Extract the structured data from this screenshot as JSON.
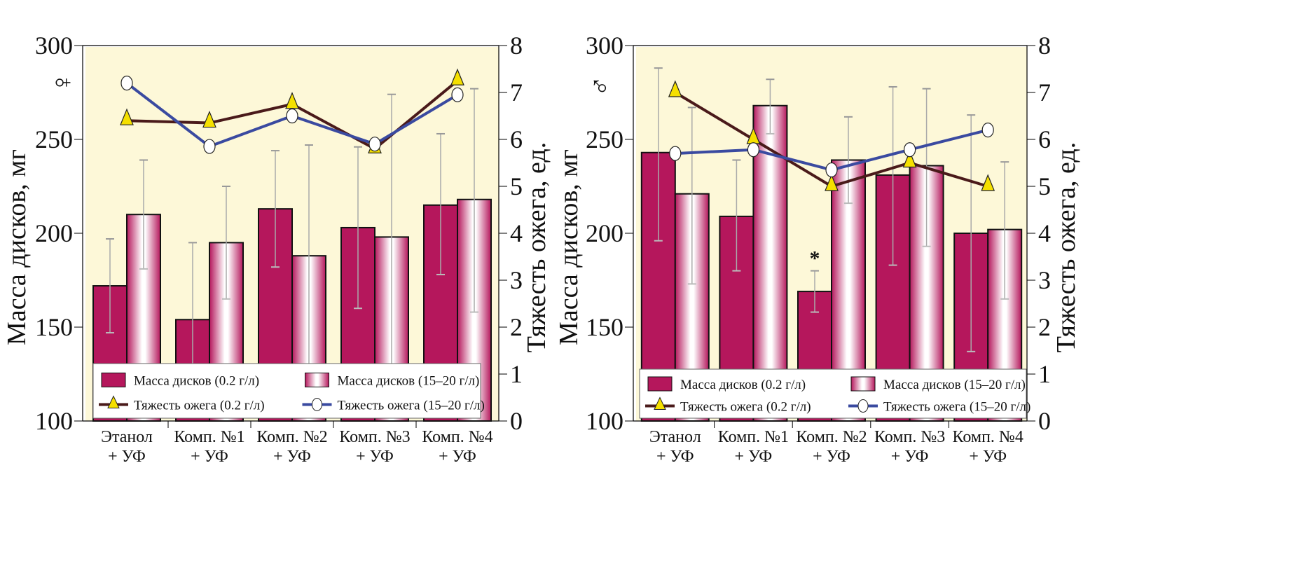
{
  "colors": {
    "bar_low": "#b5175c",
    "bar_high_edge": "#b5175c",
    "line_low": "#4a1a1a",
    "line_high": "#3a4aa0",
    "marker_triangle": "#f5e000",
    "plot_bg": "#fdf8d8"
  },
  "chart_data": [
    {
      "type": "bar+line",
      "symbol": "♀",
      "categories": [
        [
          "Этанол",
          "+ УФ"
        ],
        [
          "Комп. №1",
          "+ УФ"
        ],
        [
          "Комп. №2",
          "+ УФ"
        ],
        [
          "Комп. №3",
          "+ УФ"
        ],
        [
          "Комп. №4",
          "+ УФ"
        ]
      ],
      "ylabel": "Масса дисков, мг",
      "ylim": [
        100,
        300
      ],
      "yticks": [
        100,
        150,
        200,
        250,
        300
      ],
      "y2label": "Тяжесть ожега, ед.",
      "y2lim": [
        0,
        8
      ],
      "y2ticks": [
        0,
        1,
        2,
        3,
        4,
        5,
        6,
        7,
        8
      ],
      "bars": [
        {
          "name": "Масса дисков (0.2 г/л)",
          "values": [
            172,
            154,
            213,
            203,
            215
          ],
          "err_low": [
            147,
            113,
            182,
            160,
            178
          ],
          "err_high": [
            197,
            195,
            244,
            246,
            253
          ]
        },
        {
          "name": "Масса дисков (15–20 г/л)",
          "values": [
            210,
            195,
            188,
            198,
            218
          ],
          "err_low": [
            181,
            165,
            120,
            120,
            158
          ],
          "err_high": [
            239,
            225,
            247,
            274,
            277
          ]
        }
      ],
      "lines": [
        {
          "name": "Тяжесть ожега (0.2 г/л)",
          "values": [
            6.4,
            6.35,
            6.75,
            5.8,
            7.25
          ]
        },
        {
          "name": "Тяжесть ожега (15–20 г/л)",
          "values": [
            7.2,
            5.85,
            6.5,
            5.9,
            6.95
          ]
        }
      ],
      "annotations": [],
      "legend": "bottom"
    },
    {
      "type": "bar+line",
      "symbol": "♂",
      "categories": [
        [
          "Этанол",
          "+ УФ"
        ],
        [
          "Комп. №1",
          "+ УФ"
        ],
        [
          "Комп. №2",
          "+ УФ"
        ],
        [
          "Комп. №3",
          "+ УФ"
        ],
        [
          "Комп. №4",
          "+ УФ"
        ]
      ],
      "ylabel": "Масса дисков, мг",
      "ylim": [
        100,
        300
      ],
      "yticks": [
        100,
        150,
        200,
        250,
        300
      ],
      "y2label": "Тяжесть ожега, ед.",
      "y2lim": [
        0,
        8
      ],
      "y2ticks": [
        0,
        1,
        2,
        3,
        4,
        5,
        6,
        7,
        8
      ],
      "bars": [
        {
          "name": "Масса дисков (0.2 г/л)",
          "values": [
            243,
            209,
            169,
            231,
            200
          ],
          "err_low": [
            196,
            180,
            158,
            183,
            137
          ],
          "err_high": [
            288,
            239,
            180,
            278,
            263
          ]
        },
        {
          "name": "Масса дисков (15–20 г/л)",
          "values": [
            221,
            268,
            239,
            236,
            202
          ],
          "err_low": [
            173,
            253,
            216,
            193,
            165
          ],
          "err_high": [
            267,
            282,
            262,
            277,
            238
          ]
        }
      ],
      "lines": [
        {
          "name": "Тяжесть ожега (0.2 г/л)",
          "values": [
            7.0,
            6.0,
            5.0,
            5.5,
            5.0
          ]
        },
        {
          "name": "Тяжесть ожега (15–20 г/л)",
          "values": [
            5.7,
            5.78,
            5.35,
            5.78,
            6.2
          ]
        }
      ],
      "annotations": [
        {
          "text": "*",
          "category": 2,
          "series": 0
        }
      ],
      "legend": "bottom"
    }
  ]
}
